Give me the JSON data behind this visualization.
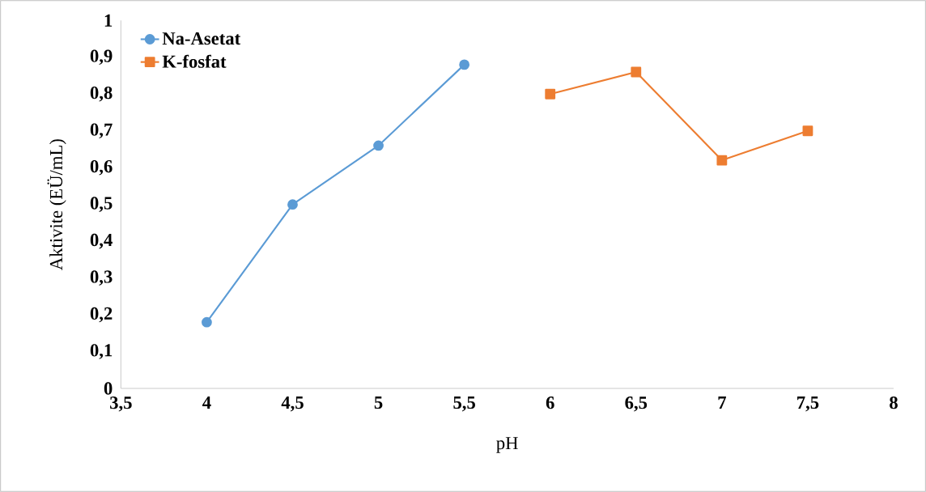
{
  "chart_data": {
    "type": "line",
    "xlabel": "pH",
    "ylabel": "Aktivite (EÜ/mL)",
    "legend": "top left",
    "line_style": "solid",
    "xlim": [
      3.5,
      8
    ],
    "ylim": [
      0,
      1
    ],
    "xticks": [
      {
        "value": 3.5,
        "label": "3,5"
      },
      4,
      {
        "value": 4.5,
        "label": "4,5"
      },
      5,
      {
        "value": 5.5,
        "label": "5,5"
      },
      6,
      {
        "value": 6.5,
        "label": "6,5"
      },
      7,
      {
        "value": 7.5,
        "label": "7,5"
      },
      8
    ],
    "yticks": [
      0,
      {
        "value": 0.1,
        "label": "0,1"
      },
      {
        "value": 0.2,
        "label": "0,2"
      },
      {
        "value": 0.3,
        "label": "0,3"
      },
      {
        "value": 0.4,
        "label": "0,4"
      },
      {
        "value": 0.5,
        "label": "0,5"
      },
      {
        "value": 0.6,
        "label": "0,6"
      },
      {
        "value": 0.7,
        "label": "0,7"
      },
      {
        "value": 0.8,
        "label": "0,8"
      },
      {
        "value": 0.9,
        "label": "0,9"
      },
      1
    ],
    "series": [
      {
        "name": "Na-Asetat",
        "color": "#5b9bd5",
        "marker": "circle",
        "x": [
          4,
          4.5,
          5,
          5.5
        ],
        "values": [
          0.18,
          0.5,
          0.66,
          0.88
        ]
      },
      {
        "name": "K-fosfat",
        "color": "#ed7d31",
        "marker": "square",
        "x": [
          6,
          6.5,
          7,
          7.5
        ],
        "values": [
          0.8,
          0.86,
          0.62,
          0.7
        ]
      }
    ]
  }
}
